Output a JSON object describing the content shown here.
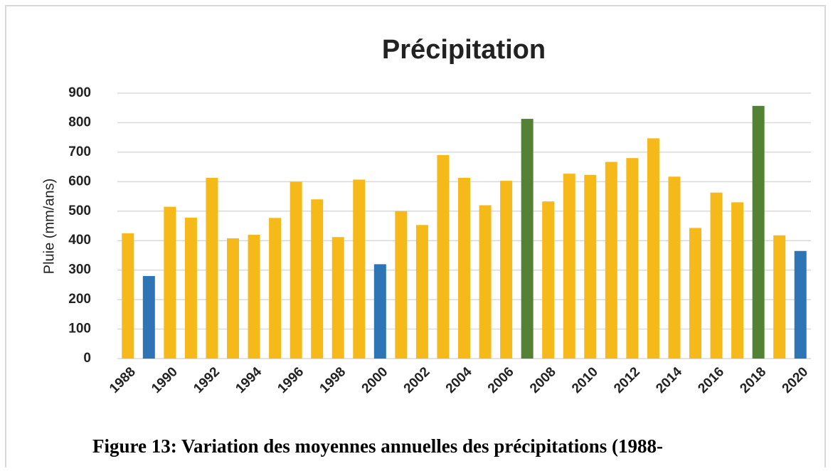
{
  "chart_data": {
    "type": "bar",
    "title": "Précipitation",
    "y_label": "Pluie (mm/ans)",
    "categories": [
      "1988",
      null,
      "1990",
      null,
      "1992",
      null,
      "1994",
      null,
      "1996",
      null,
      "1998",
      null,
      "2000",
      null,
      "2002",
      null,
      "2004",
      null,
      "2006",
      null,
      "2008",
      null,
      "2010",
      null,
      "2012",
      null,
      "2014",
      null,
      "2016",
      null,
      "2018",
      null,
      "2020"
    ],
    "values": [
      425,
      280,
      515,
      478,
      613,
      408,
      420,
      477,
      600,
      540,
      412,
      607,
      320,
      500,
      453,
      690,
      613,
      520,
      603,
      813,
      533,
      627,
      623,
      667,
      680,
      747,
      617,
      443,
      563,
      530,
      857,
      418,
      365
    ],
    "colors": [
      "#f6b91a",
      "#2e75b6",
      "#f6b91a",
      "#f6b91a",
      "#f6b91a",
      "#f6b91a",
      "#f6b91a",
      "#f6b91a",
      "#f6b91a",
      "#f6b91a",
      "#f6b91a",
      "#f6b91a",
      "#2e75b6",
      "#f6b91a",
      "#f6b91a",
      "#f6b91a",
      "#f6b91a",
      "#f6b91a",
      "#f6b91a",
      "#548235",
      "#f6b91a",
      "#f6b91a",
      "#f6b91a",
      "#f6b91a",
      "#f6b91a",
      "#f6b91a",
      "#f6b91a",
      "#f6b91a",
      "#f6b91a",
      "#f6b91a",
      "#548235",
      "#f6b91a",
      "#2e75b6"
    ],
    "ylim": [
      0,
      900
    ],
    "yticks": [
      0,
      100,
      200,
      300,
      400,
      500,
      600,
      700,
      800,
      900
    ],
    "grid": true
  },
  "caption": "Figure 13: Variation des moyennes annuelles des précipitations (1988-"
}
